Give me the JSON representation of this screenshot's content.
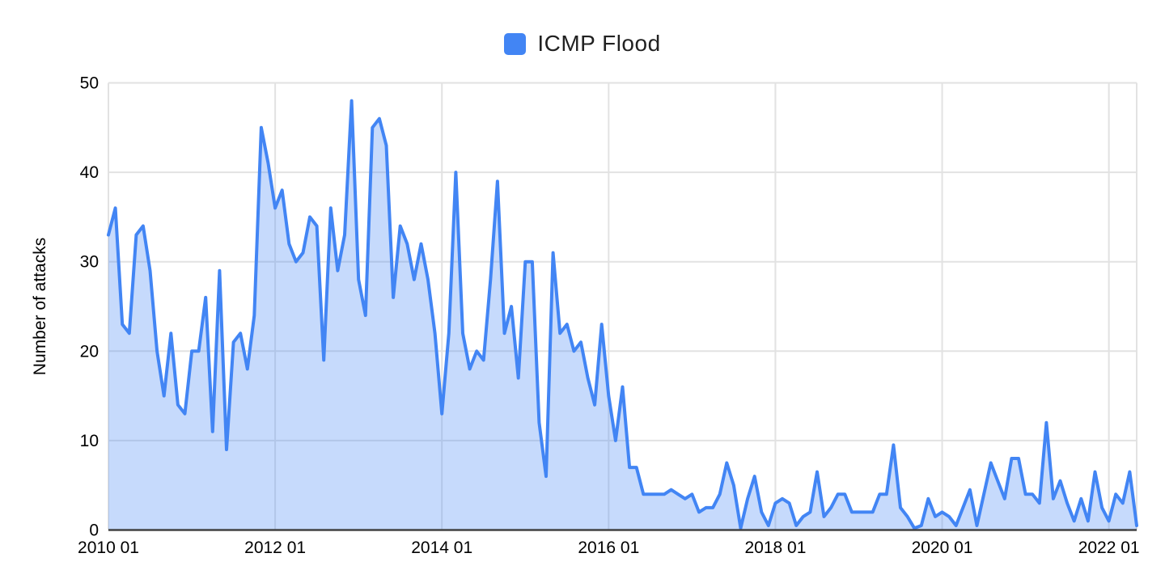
{
  "legend": {
    "label": "ICMP Flood",
    "swatch_color": "#4285f4"
  },
  "y_axis": {
    "title": "Number of attacks",
    "tick_labels": [
      "0",
      "10",
      "20",
      "30",
      "40",
      "50"
    ]
  },
  "x_axis": {
    "tick_labels": [
      "2010 01",
      "2012 01",
      "2014 01",
      "2016 01",
      "2018 01",
      "2020 01",
      "2022 01"
    ]
  },
  "colors": {
    "line": "#4285f4",
    "area_fill": "rgba(66,133,244,0.3)",
    "gridline": "#e2e2e2",
    "baseline": "#424242",
    "tick_text": "#000000"
  },
  "chart_data": {
    "type": "area",
    "title": "",
    "series_name": "ICMP Flood",
    "x_start": "2010 01",
    "x_end": "2022 05",
    "x_frequency": "monthly",
    "ylabel": "Number of attacks",
    "ylim": [
      0,
      50
    ],
    "grid": "on",
    "legend_position": "top-center",
    "values": [
      33,
      36,
      23,
      22,
      33,
      34,
      29,
      20,
      15,
      22,
      14,
      13,
      20,
      20,
      26,
      11,
      29,
      9,
      21,
      22,
      18,
      24,
      45,
      41,
      36,
      38,
      32,
      30,
      31,
      35,
      34,
      19,
      36,
      29,
      33,
      48,
      28,
      24,
      45,
      46,
      43,
      26,
      34,
      32,
      28,
      32,
      28,
      22,
      13,
      22,
      40,
      22,
      18,
      20,
      19,
      28,
      39,
      22,
      25,
      17,
      30,
      30,
      12,
      6,
      31,
      22,
      23,
      20,
      21,
      17,
      14,
      23,
      15,
      10,
      16,
      7,
      7,
      4,
      4,
      4,
      4,
      4.5,
      4,
      3.5,
      4,
      2,
      2.5,
      2.5,
      4,
      7.5,
      5,
      0.2,
      3.5,
      6,
      2,
      0.5,
      3,
      3.5,
      3,
      0.5,
      1.5,
      2,
      6.5,
      1.5,
      2.5,
      4,
      4,
      2,
      2,
      2,
      2,
      4,
      4,
      9.5,
      2.5,
      1.5,
      0.2,
      0.5,
      3.5,
      1.5,
      2,
      1.5,
      0.5,
      2.5,
      4.5,
      0.5,
      4,
      7.5,
      5.5,
      3.5,
      8,
      8,
      4,
      4,
      3,
      12,
      3.5,
      5.5,
      3,
      1,
      3.5,
      1,
      6.5,
      2.5,
      1,
      4,
      3,
      6.5,
      0.5
    ]
  }
}
